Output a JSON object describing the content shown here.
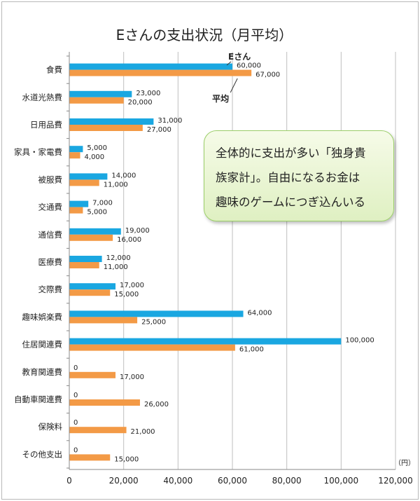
{
  "chart_data": {
    "type": "bar",
    "orientation": "horizontal",
    "title": "Eさんの支出状況（月平均）",
    "unit_label": "（円）",
    "categories": [
      "食費",
      "水道光熱費",
      "日用品費",
      "家具・家電費",
      "被服費",
      "交通費",
      "通信費",
      "医療費",
      "交際費",
      "趣味娯楽費",
      "住居関連費",
      "教育関連費",
      "自動車関連費",
      "保険料",
      "その他支出"
    ],
    "series": [
      {
        "name": "Eさん",
        "color": "#1aa7e1",
        "values": [
          60000,
          23000,
          31000,
          5000,
          14000,
          7000,
          19000,
          12000,
          17000,
          64000,
          100000,
          0,
          0,
          0,
          0
        ]
      },
      {
        "name": "平均",
        "color": "#f39a46",
        "values": [
          67000,
          20000,
          27000,
          4000,
          11000,
          5000,
          16000,
          11000,
          15000,
          25000,
          61000,
          17000,
          26000,
          21000,
          15000
        ]
      }
    ],
    "xlim": [
      0,
      120000
    ],
    "xticks": [
      "0",
      "20,000",
      "40,000",
      "60,000",
      "80,000",
      "100,000",
      "120,000"
    ],
    "grid": "vertical",
    "annotations": [
      "全体的に支出が多い「独身貴族家計」。自由になるお金は趣味のゲームにつぎ込んいる"
    ]
  },
  "callout": {
    "text": "全体的に支出が多い「独身貴\n族家計」。自由になるお金は\n趣味のゲームにつぎ込んいる"
  }
}
